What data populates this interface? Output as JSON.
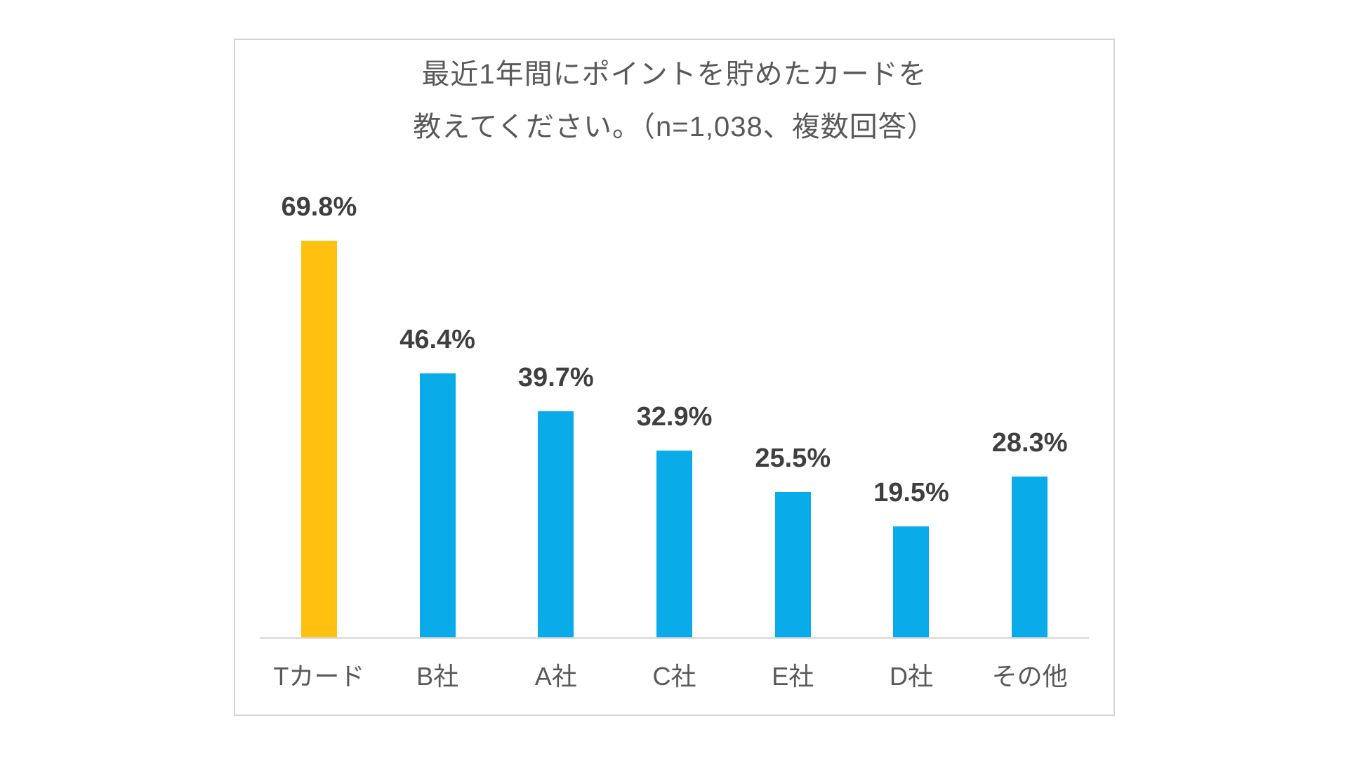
{
  "chart_data": {
    "type": "bar",
    "title_line1": "最近1年間にポイントを貯めたカードを",
    "title_line2": "教えてください。（n=1,038、複数回答）",
    "categories": [
      "Tカード",
      "B社",
      "A社",
      "C社",
      "E社",
      "D社",
      "その他"
    ],
    "values": [
      69.8,
      46.4,
      39.7,
      32.9,
      25.5,
      19.5,
      28.3
    ],
    "value_label_suffix": "%",
    "highlight_index": 0,
    "ylim": [
      0,
      80
    ],
    "grid": false,
    "legend": false,
    "data_labels": true,
    "colors": {
      "bar_highlight": "#ffc010",
      "bar_default": "#09abe8",
      "title_text": "#595959",
      "value_text": "#3f3f3f",
      "category_text": "#595959",
      "axis_line": "#d6d6d6",
      "box_border": "#d4d4d4",
      "background": "#ffffff"
    }
  }
}
